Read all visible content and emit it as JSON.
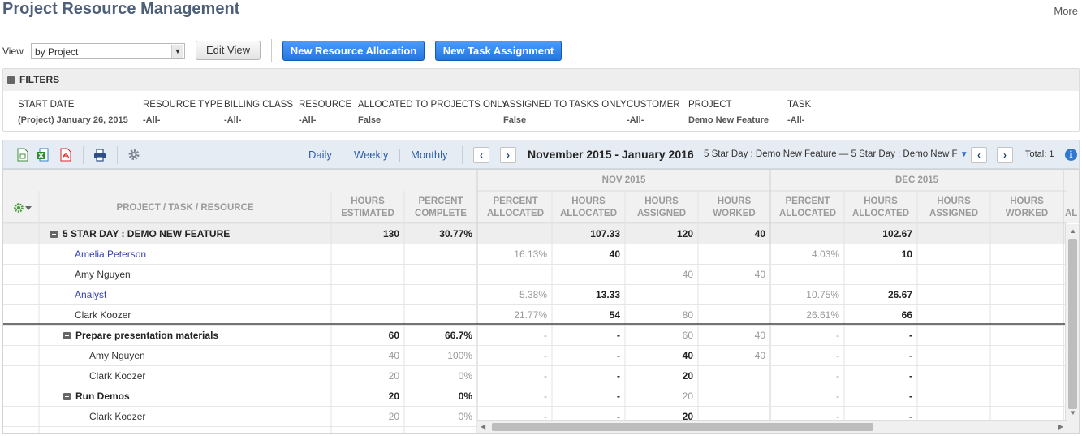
{
  "page": {
    "title": "Project Resource Management",
    "more_label": "More"
  },
  "view_bar": {
    "label": "View",
    "selected": "by Project",
    "edit_view": "Edit View",
    "new_resource_allocation": "New Resource Allocation",
    "new_task_assignment": "New Task Assignment"
  },
  "filters": {
    "header": "FILTERS",
    "items": [
      {
        "label": "START DATE",
        "value": "(Project) January 26, 2015"
      },
      {
        "label": "RESOURCE TYPE",
        "value": "-All-"
      },
      {
        "label": "BILLING CLASS",
        "value": "-All-"
      },
      {
        "label": "RESOURCE",
        "value": "-All-"
      },
      {
        "label": "ALLOCATED TO PROJECTS ONLY",
        "value": "False"
      },
      {
        "label": "ASSIGNED TO TASKS ONLY",
        "value": "False"
      },
      {
        "label": "CUSTOMER",
        "value": "-All-"
      },
      {
        "label": "PROJECT",
        "value": "Demo New Feature"
      },
      {
        "label": "TASK",
        "value": "-All-"
      }
    ]
  },
  "toolbar": {
    "periods": [
      "Daily",
      "Weekly",
      "Monthly"
    ],
    "prev": "‹",
    "next": "›",
    "range": "November 2015 - January 2016",
    "project_dropdown": "5 Star Day : Demo New Feature — 5 Star Day : Demo New F",
    "total_label": "Total: 1",
    "icons": [
      "csv-export-icon",
      "excel-export-icon",
      "pdf-export-icon",
      "print-icon",
      "settings-icon",
      "info-icon"
    ]
  },
  "grid": {
    "months": [
      "NOV 2015",
      "DEC 2015"
    ],
    "headers": {
      "project": "PROJECT / TASK / RESOURCE",
      "hours_estimated": [
        "HOURS",
        "ESTIMATED"
      ],
      "percent_complete": [
        "PERCENT",
        "COMPLETE"
      ],
      "percent_allocated": [
        "PERCENT",
        "ALLOCATED"
      ],
      "hours_allocated": [
        "HOURS",
        "ALLOCATED"
      ],
      "hours_assigned": [
        "HOURS",
        "ASSIGNED"
      ],
      "hours_worked": [
        "HOURS",
        "WORKED"
      ],
      "cut_off": "AL"
    },
    "rows": [
      {
        "name": "5 STAR DAY : DEMO NEW FEATURE",
        "kind": "project",
        "est": "130",
        "pct": "30.77%",
        "n_pa": "",
        "n_ha": "107.33",
        "n_as": "120",
        "n_wk": "40",
        "d_pa": "",
        "d_ha": "102.67",
        "d_as": "",
        "d_wk": ""
      },
      {
        "name": "Amelia Peterson",
        "kind": "resource-link",
        "est": "",
        "pct": "",
        "n_pa": "16.13%",
        "n_ha": "40",
        "n_as": "",
        "n_wk": "",
        "d_pa": "4.03%",
        "d_ha": "10",
        "d_as": "",
        "d_wk": ""
      },
      {
        "name": "Amy Nguyen",
        "kind": "resource",
        "est": "",
        "pct": "",
        "n_pa": "",
        "n_ha": "",
        "n_as": "40",
        "n_wk": "40",
        "d_pa": "",
        "d_ha": "",
        "d_as": "",
        "d_wk": ""
      },
      {
        "name": "Analyst",
        "kind": "resource-link",
        "est": "",
        "pct": "",
        "n_pa": "5.38%",
        "n_ha": "13.33",
        "n_as": "",
        "n_wk": "",
        "d_pa": "10.75%",
        "d_ha": "26.67",
        "d_as": "",
        "d_wk": ""
      },
      {
        "name": "Clark Koozer",
        "kind": "resource",
        "est": "",
        "pct": "",
        "n_pa": "21.77%",
        "n_ha": "54",
        "n_as": "80",
        "n_wk": "",
        "d_pa": "26.61%",
        "d_ha": "66",
        "d_as": "",
        "d_wk": ""
      },
      {
        "name": "Prepare presentation materials",
        "kind": "task",
        "est": "60",
        "pct": "66.7%",
        "n_pa": "-",
        "n_ha": "-",
        "n_as": "60",
        "n_wk": "40",
        "d_pa": "-",
        "d_ha": "-",
        "d_as": "",
        "d_wk": ""
      },
      {
        "name": "Amy Nguyen",
        "kind": "task-resource",
        "est": "40",
        "pct": "100%",
        "n_pa": "-",
        "n_ha": "-",
        "n_as": "40",
        "n_wk": "40",
        "d_pa": "-",
        "d_ha": "-",
        "d_as": "",
        "d_wk": ""
      },
      {
        "name": "Clark Koozer",
        "kind": "task-resource",
        "est": "20",
        "pct": "0%",
        "n_pa": "-",
        "n_ha": "-",
        "n_as": "20",
        "n_wk": "",
        "d_pa": "-",
        "d_ha": "-",
        "d_as": "",
        "d_wk": ""
      },
      {
        "name": "Run Demos",
        "kind": "task",
        "est": "20",
        "pct": "0%",
        "n_pa": "-",
        "n_ha": "-",
        "n_as": "20",
        "n_wk": "",
        "d_pa": "-",
        "d_ha": "-",
        "d_as": "",
        "d_wk": ""
      },
      {
        "name": "Clark Koozer",
        "kind": "task-resource",
        "est": "20",
        "pct": "0%",
        "n_pa": "-",
        "n_ha": "-",
        "n_as": "20",
        "n_wk": "",
        "d_pa": "-",
        "d_ha": "-",
        "d_as": "",
        "d_wk": ""
      }
    ]
  }
}
